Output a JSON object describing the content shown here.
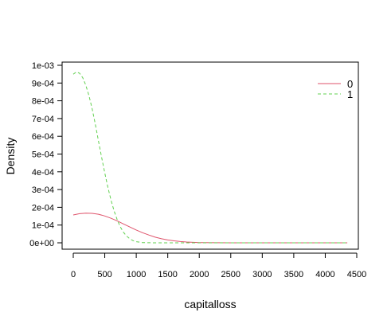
{
  "chart_data": {
    "type": "line",
    "title": "",
    "xlabel": "capitalloss",
    "ylabel": "Density",
    "xlim": [
      0,
      4500
    ],
    "ylim": [
      0,
      0.001
    ],
    "x_ticks": [
      0,
      500,
      1000,
      1500,
      2000,
      2500,
      3000,
      3500,
      4000,
      4500
    ],
    "x_tick_labels": [
      "0",
      "500",
      "1000",
      "1500",
      "2000",
      "2500",
      "3000",
      "3500",
      "4000",
      "4500"
    ],
    "y_ticks": [
      0,
      0.0001,
      0.0002,
      0.0003,
      0.0004,
      0.0005,
      0.0006,
      0.0007,
      0.0008,
      0.0009,
      0.001
    ],
    "y_tick_labels": [
      "0e+00",
      "1e-04",
      "2e-04",
      "3e-04",
      "4e-04",
      "5e-04",
      "6e-04",
      "7e-04",
      "8e-04",
      "9e-04",
      "1e-03"
    ],
    "grid": false,
    "legend_position": "top-right",
    "series": [
      {
        "name": "0",
        "color": "#DF536B",
        "line_style": "solid",
        "x": [
          0,
          100,
          200,
          300,
          400,
          500,
          600,
          700,
          800,
          900,
          1000,
          1100,
          1200,
          1300,
          1400,
          1500,
          1600,
          1700,
          1800,
          1900,
          2000,
          2500,
          3000,
          3500,
          4000,
          4350
        ],
        "y": [
          0.000157,
          0.000164,
          0.000167,
          0.000166,
          0.000161,
          0.000151,
          0.000138,
          0.000123,
          0.000106,
          8.9e-05,
          7.2e-05,
          5.7e-05,
          4.4e-05,
          3.2e-05,
          2.3e-05,
          1.6e-05,
          1.1e-05,
          7.2e-06,
          4.5e-06,
          2.6e-06,
          1.4e-06,
          1e-07,
          0,
          0,
          0,
          0
        ]
      },
      {
        "name": "1",
        "color": "#61D04F",
        "line_style": "dashed",
        "x": [
          0,
          50,
          100,
          150,
          200,
          250,
          300,
          350,
          400,
          450,
          500,
          550,
          600,
          650,
          700,
          750,
          800,
          850,
          900,
          950,
          1000,
          1100,
          1200,
          1300,
          1500,
          2000,
          3000,
          4000,
          4350
        ],
        "y": [
          0.00095,
          0.000963,
          0.000955,
          0.00093,
          0.000887,
          0.000828,
          0.000755,
          0.000668,
          0.000575,
          0.000482,
          0.000393,
          0.000312,
          0.000239,
          0.000178,
          0.000128,
          8.8e-05,
          5.8e-05,
          3.7e-05,
          2.2e-05,
          1.2e-05,
          6.5e-06,
          1.5e-06,
          3e-07,
          0,
          0,
          0,
          0,
          0,
          0
        ]
      }
    ]
  }
}
